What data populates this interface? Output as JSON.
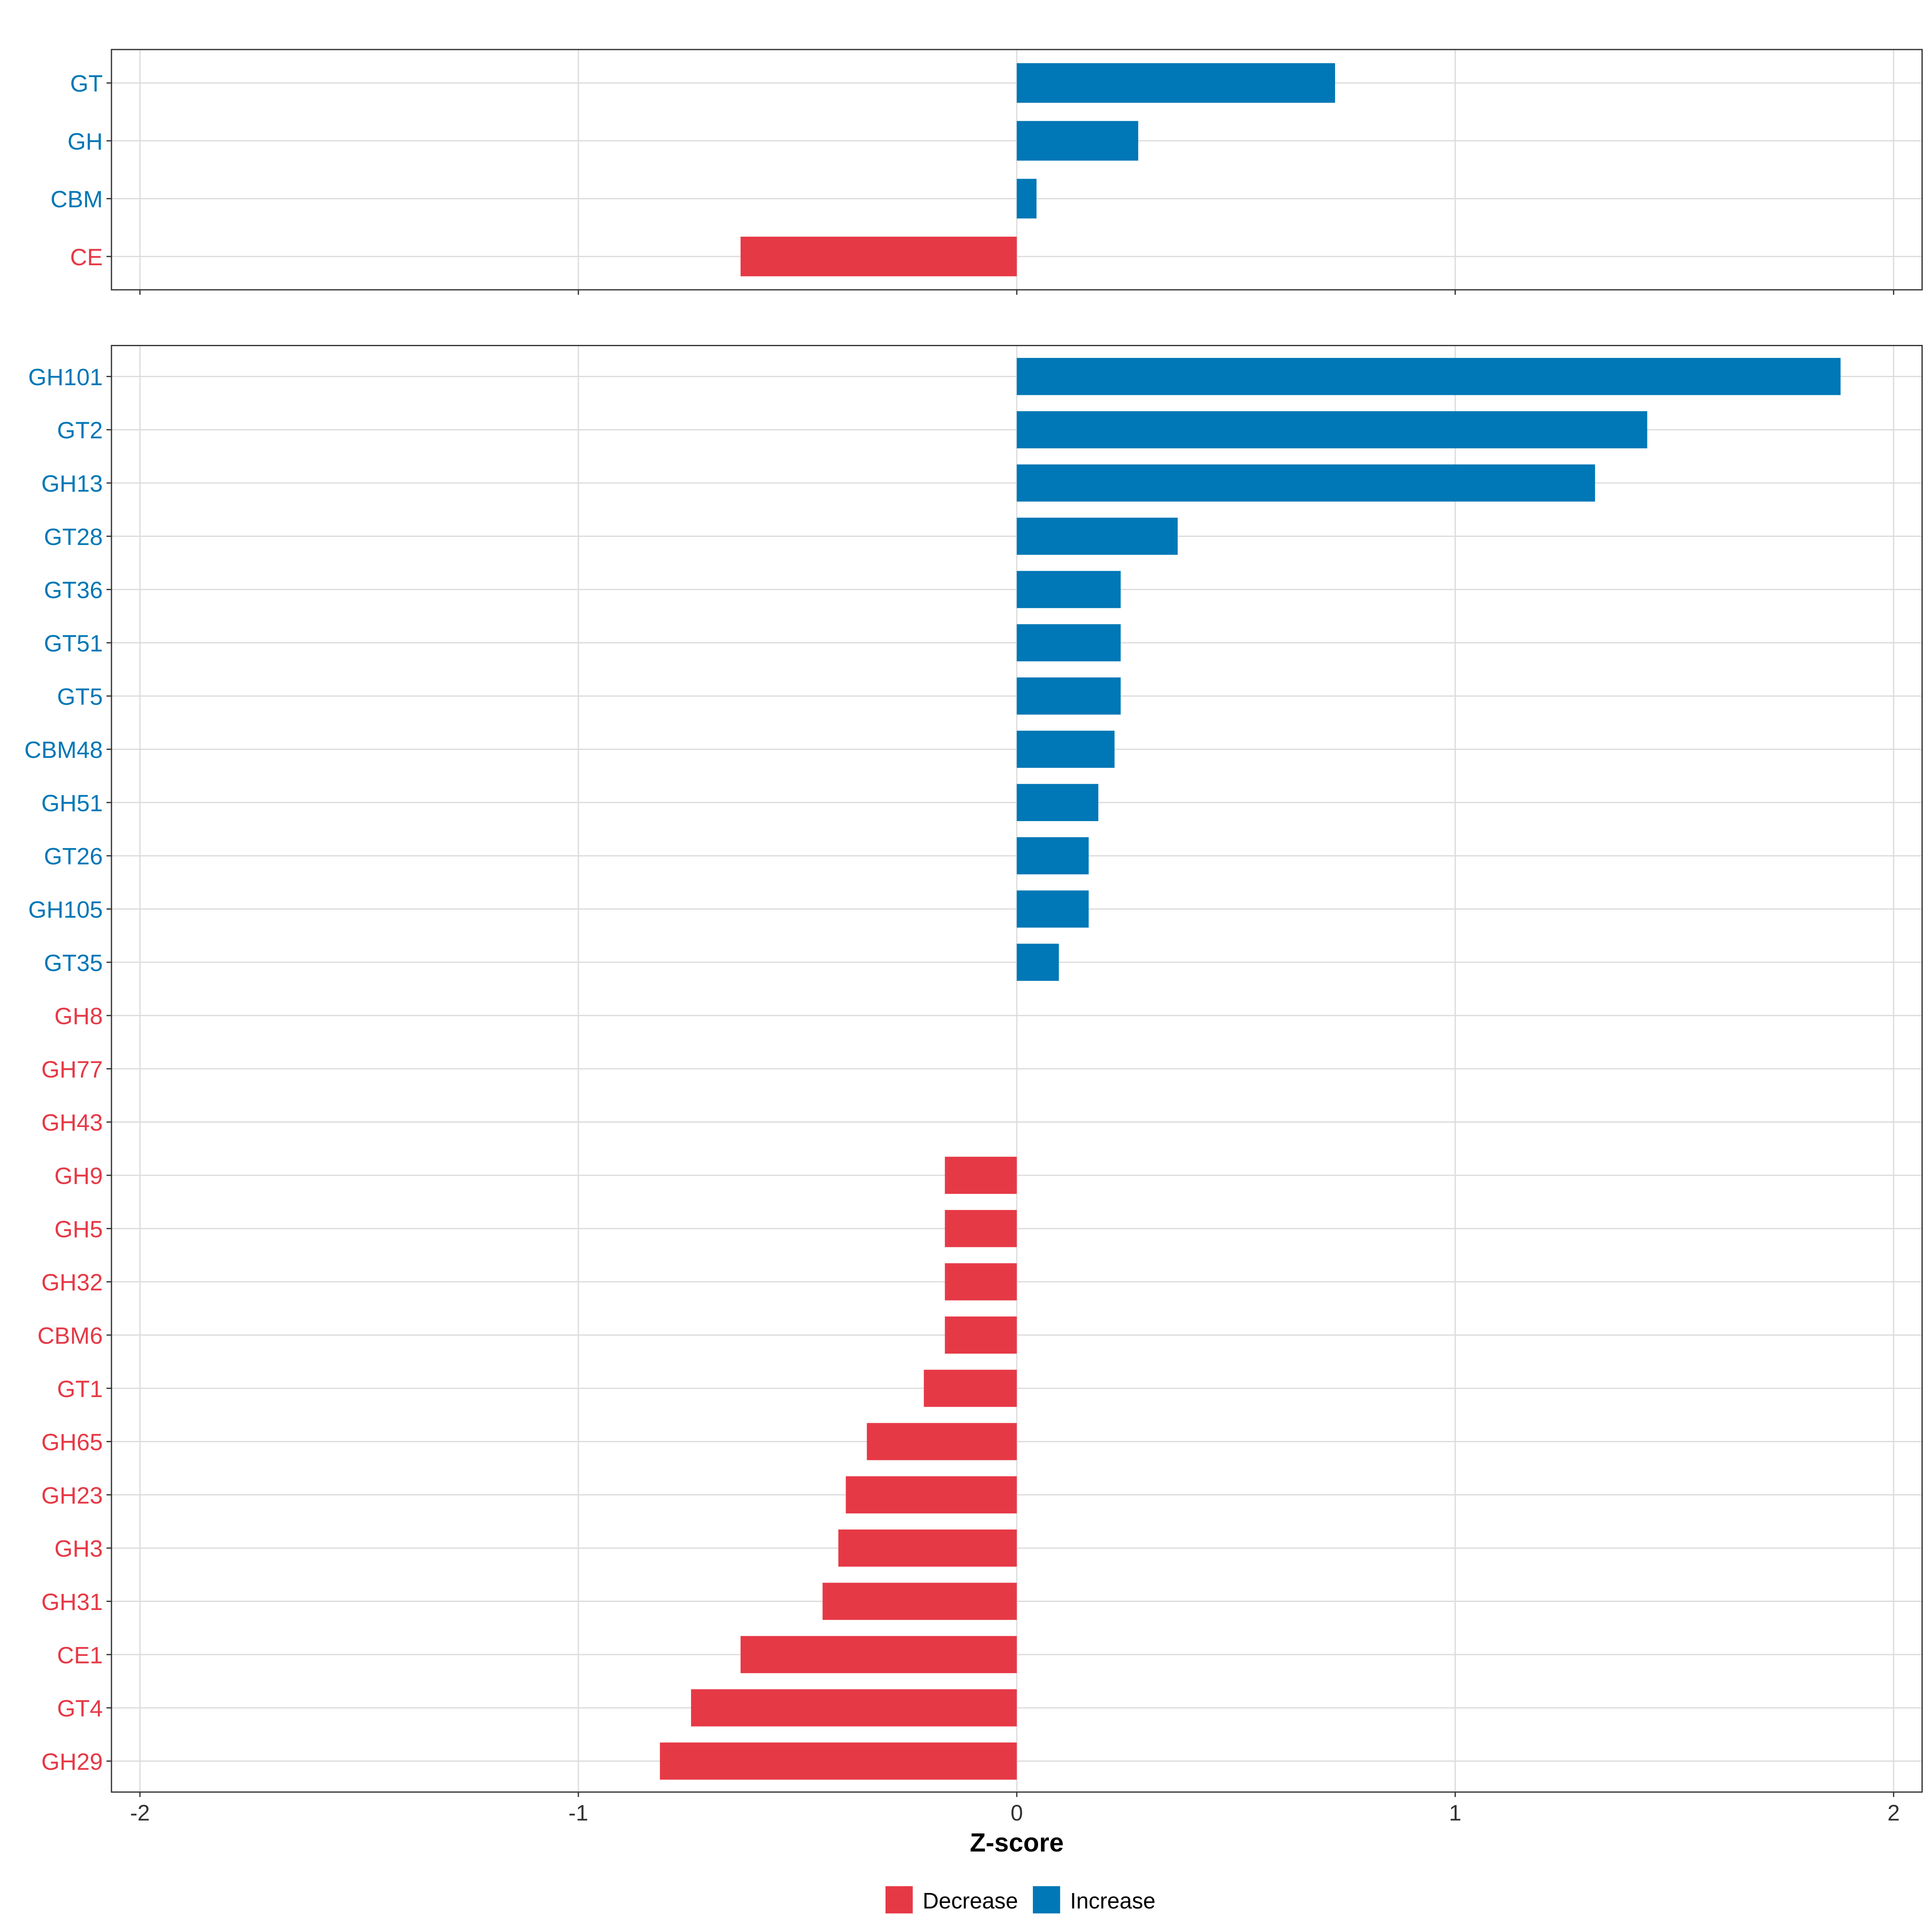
{
  "chart_data": [
    {
      "type": "bar",
      "orientation": "horizontal",
      "panel": "top",
      "categories": [
        "GT",
        "GH",
        "CBM",
        "CE"
      ],
      "values": [
        0.726,
        0.277,
        0.045,
        -0.63
      ],
      "directions": [
        "Increase",
        "Increase",
        "Increase",
        "Decrease"
      ],
      "xlim": [
        -2.07,
        2.07
      ],
      "grid": true
    },
    {
      "type": "bar",
      "orientation": "horizontal",
      "panel": "bottom",
      "categories": [
        "GH101",
        "GT2",
        "GH13",
        "GT28",
        "GT36",
        "GT51",
        "GT5",
        "CBM48",
        "GH51",
        "GT26",
        "GH105",
        "GT35",
        "GH8",
        "GH77",
        "GH43",
        "GH9",
        "GH5",
        "GH32",
        "CBM6",
        "GT1",
        "GH65",
        "GH23",
        "GH3",
        "GH31",
        "CE1",
        "GT4",
        "GH29"
      ],
      "values": [
        1.879,
        1.438,
        1.319,
        0.367,
        0.237,
        0.237,
        0.237,
        0.223,
        0.186,
        0.164,
        0.164,
        0.096,
        0,
        0,
        0,
        -0.164,
        -0.164,
        -0.164,
        -0.164,
        -0.212,
        -0.342,
        -0.39,
        -0.407,
        -0.443,
        -0.63,
        -0.743,
        -0.814
      ],
      "directions": [
        "Increase",
        "Increase",
        "Increase",
        "Increase",
        "Increase",
        "Increase",
        "Increase",
        "Increase",
        "Increase",
        "Increase",
        "Increase",
        "Increase",
        "Decrease",
        "Decrease",
        "Decrease",
        "Decrease",
        "Decrease",
        "Decrease",
        "Decrease",
        "Decrease",
        "Decrease",
        "Decrease",
        "Decrease",
        "Decrease",
        "Decrease",
        "Decrease",
        "Decrease"
      ],
      "xlim": [
        -2.07,
        2.07
      ],
      "xticks": [
        "-2",
        "-1",
        "0",
        "1",
        "2"
      ],
      "xtick_values": [
        -2,
        -1,
        0,
        1,
        2
      ],
      "xlabel": "Z-score",
      "grid": true
    }
  ],
  "legend": {
    "placement": "bottom",
    "items": [
      {
        "label": "Decrease",
        "color": "#E63946"
      },
      {
        "label": "Increase",
        "color": "#0077B6"
      }
    ]
  },
  "colors": {
    "Increase": "#0077B6",
    "Decrease": "#E63946"
  }
}
